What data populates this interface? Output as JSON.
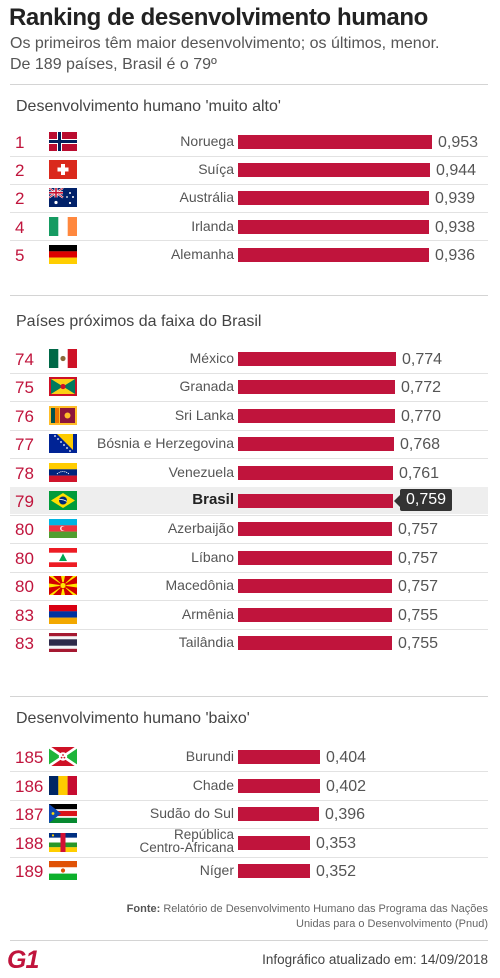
{
  "header": {
    "title": "Ranking de desenvolvimento humano",
    "subtitle_line1": "Os primeiros têm maior desenvolvimento; os últimos, menor.",
    "subtitle_line2": "De 189 países, Brasil é o 79º"
  },
  "colors": {
    "bar": "#c0143c",
    "rank": "#c0143c",
    "highlight_row": "#eeeeee",
    "badge": "#333333"
  },
  "chart_data": {
    "type": "bar",
    "title": "Ranking de desenvolvimento humano",
    "sections": [
      {
        "title": "Desenvolvimento humano 'muito alto'",
        "rows": [
          {
            "rank": "1",
            "country": "Noruega",
            "value": 0.953,
            "label": "0,953",
            "flag": "norway-flag"
          },
          {
            "rank": "2",
            "country": "Suíça",
            "value": 0.944,
            "label": "0,944",
            "flag": "switzerland-flag"
          },
          {
            "rank": "2",
            "country": "Austrália",
            "value": 0.939,
            "label": "0,939",
            "flag": "australia-flag"
          },
          {
            "rank": "4",
            "country": "Irlanda",
            "value": 0.938,
            "label": "0,938",
            "flag": "ireland-flag"
          },
          {
            "rank": "5",
            "country": "Alemanha",
            "value": 0.936,
            "label": "0,936",
            "flag": "germany-flag"
          }
        ]
      },
      {
        "title": "Países próximos da faixa do Brasil",
        "rows": [
          {
            "rank": "74",
            "country": "México",
            "value": 0.774,
            "label": "0,774",
            "flag": "mexico-flag"
          },
          {
            "rank": "75",
            "country": "Granada",
            "value": 0.772,
            "label": "0,772",
            "flag": "grenada-flag"
          },
          {
            "rank": "76",
            "country": "Sri Lanka",
            "value": 0.77,
            "label": "0,770",
            "flag": "sri-lanka-flag"
          },
          {
            "rank": "77",
            "country": "Bósnia e Herzegovina",
            "value": 0.768,
            "label": "0,768",
            "flag": "bosnia-flag"
          },
          {
            "rank": "78",
            "country": "Venezuela",
            "value": 0.761,
            "label": "0,761",
            "flag": "venezuela-flag"
          },
          {
            "rank": "79",
            "country": "Brasil",
            "value": 0.759,
            "label": "0,759",
            "flag": "brazil-flag",
            "highlight": true
          },
          {
            "rank": "80",
            "country": "Azerbaijão",
            "value": 0.757,
            "label": "0,757",
            "flag": "azerbaijan-flag"
          },
          {
            "rank": "80",
            "country": "Líbano",
            "value": 0.757,
            "label": "0,757",
            "flag": "lebanon-flag"
          },
          {
            "rank": "80",
            "country": "Macedônia",
            "value": 0.757,
            "label": "0,757",
            "flag": "macedonia-flag"
          },
          {
            "rank": "83",
            "country": "Armênia",
            "value": 0.755,
            "label": "0,755",
            "flag": "armenia-flag"
          },
          {
            "rank": "83",
            "country": "Tailândia",
            "value": 0.755,
            "label": "0,755",
            "flag": "thailand-flag"
          }
        ]
      },
      {
        "title": "Desenvolvimento humano 'baixo'",
        "rows": [
          {
            "rank": "185",
            "country": "Burundi",
            "value": 0.404,
            "label": "0,404",
            "flag": "burundi-flag"
          },
          {
            "rank": "186",
            "country": "Chade",
            "value": 0.402,
            "label": "0,402",
            "flag": "chad-flag"
          },
          {
            "rank": "187",
            "country": "Sudão do Sul",
            "value": 0.396,
            "label": "0,396",
            "flag": "south-sudan-flag"
          },
          {
            "rank": "188",
            "country": "República\nCentro-Africana",
            "value": 0.353,
            "label": "0,353",
            "flag": "central-african-republic-flag"
          },
          {
            "rank": "189",
            "country": "Níger",
            "value": 0.352,
            "label": "0,352",
            "flag": "niger-flag"
          }
        ]
      }
    ]
  },
  "footer": {
    "source_label": "Fonte:",
    "source_text": "Relatório de Desenvolvimento Humano das Programa das Nações Unidas para o Desenvolvimento (Pnud)",
    "logo": "G1",
    "updated": "Infográfico atualizado em: 14/09/2018"
  }
}
